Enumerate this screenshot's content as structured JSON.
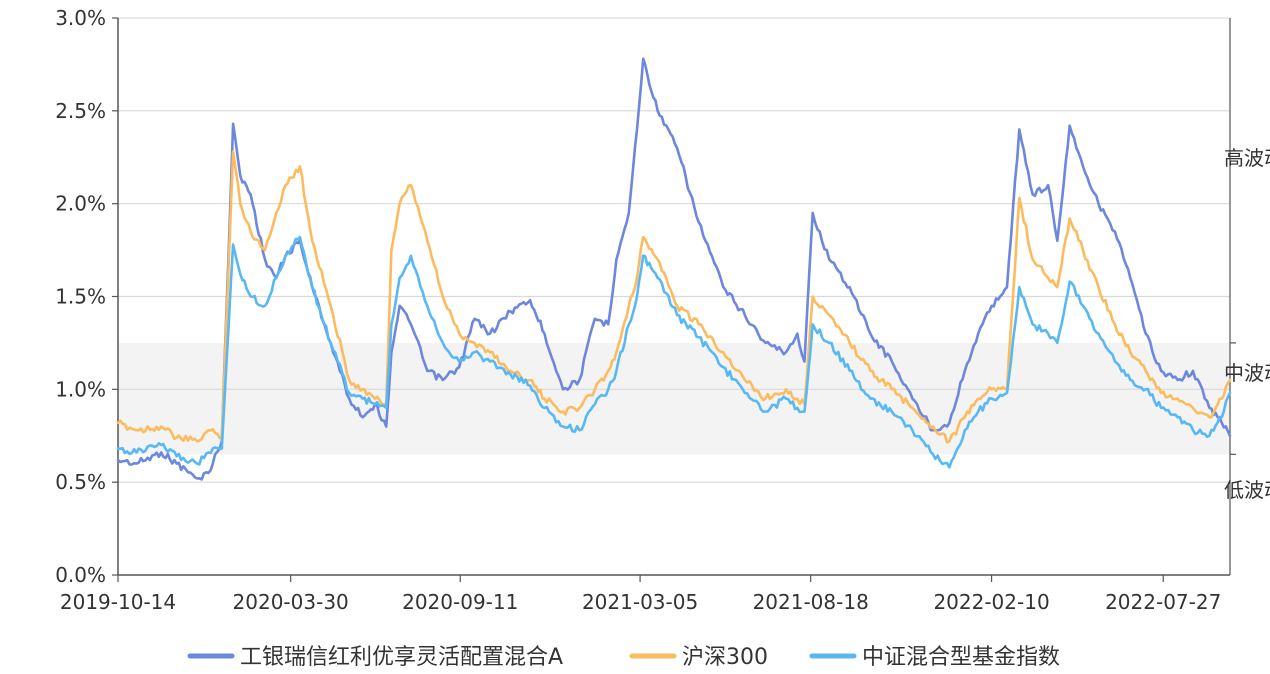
{
  "colors": {
    "fund": "#6c87dd",
    "csi300": "#fbbb5e",
    "index": "#58b8f4",
    "grid": "#d9d9d9",
    "axis": "#555555",
    "band": "#f3f3f3"
  },
  "zones": {
    "high": "高波动",
    "mid": "中波动",
    "low": "低波动",
    "mid_band": [
      0.65,
      1.25
    ]
  },
  "chart_data": {
    "type": "line",
    "title": "",
    "xlabel": "",
    "ylabel": "",
    "ylim": [
      0,
      3.0
    ],
    "y_ticks": [
      0,
      0.5,
      1.0,
      1.5,
      2.0,
      2.5,
      3.0
    ],
    "y_tick_labels": [
      "0.0%",
      "0.5%",
      "1.0%",
      "1.5%",
      "2.0%",
      "2.5%",
      "3.0%"
    ],
    "x_range": [
      "2019-10-14",
      "2022-09-30"
    ],
    "x_tick_labels": [
      "2019-10-14",
      "2020-03-30",
      "2020-09-11",
      "2021-03-05",
      "2021-08-18",
      "2022-02-10",
      "2022-07-27"
    ],
    "grid": true,
    "legend_position": "bottom-center",
    "series": [
      {
        "name": "工银瑞信红利优享灵活配置混合A",
        "color_key": "fund",
        "points": [
          [
            "2019-10-14",
            0.62
          ],
          [
            "2019-11-01",
            0.6
          ],
          [
            "2019-11-25",
            0.66
          ],
          [
            "2019-12-10",
            0.6
          ],
          [
            "2019-12-30",
            0.52
          ],
          [
            "2020-01-10",
            0.55
          ],
          [
            "2020-01-23",
            0.72
          ],
          [
            "2020-02-03",
            2.43
          ],
          [
            "2020-02-10",
            2.15
          ],
          [
            "2020-02-20",
            2.05
          ],
          [
            "2020-03-05",
            1.7
          ],
          [
            "2020-03-16",
            1.6
          ],
          [
            "2020-03-25",
            1.72
          ],
          [
            "2020-04-08",
            1.8
          ],
          [
            "2020-04-20",
            1.55
          ],
          [
            "2020-05-08",
            1.25
          ],
          [
            "2020-05-26",
            0.95
          ],
          [
            "2020-06-08",
            0.85
          ],
          [
            "2020-06-20",
            0.92
          ],
          [
            "2020-07-01",
            0.8
          ],
          [
            "2020-07-06",
            1.2
          ],
          [
            "2020-07-14",
            1.45
          ],
          [
            "2020-07-25",
            1.35
          ],
          [
            "2020-08-10",
            1.1
          ],
          [
            "2020-08-25",
            1.05
          ],
          [
            "2020-09-10",
            1.12
          ],
          [
            "2020-09-25",
            1.38
          ],
          [
            "2020-10-10",
            1.3
          ],
          [
            "2020-10-30",
            1.42
          ],
          [
            "2020-11-18",
            1.48
          ],
          [
            "2020-12-02",
            1.3
          ],
          [
            "2020-12-20",
            1.0
          ],
          [
            "2021-01-05",
            1.05
          ],
          [
            "2021-01-20",
            1.38
          ],
          [
            "2021-02-02",
            1.35
          ],
          [
            "2021-02-10",
            1.7
          ],
          [
            "2021-02-22",
            1.95
          ],
          [
            "2021-03-02",
            2.4
          ],
          [
            "2021-03-08",
            2.78
          ],
          [
            "2021-03-22",
            2.5
          ],
          [
            "2021-04-10",
            2.3
          ],
          [
            "2021-05-01",
            1.9
          ],
          [
            "2021-05-25",
            1.55
          ],
          [
            "2021-06-15",
            1.4
          ],
          [
            "2021-07-05",
            1.25
          ],
          [
            "2021-07-25",
            1.2
          ],
          [
            "2021-08-05",
            1.3
          ],
          [
            "2021-08-12",
            1.15
          ],
          [
            "2021-08-20",
            1.95
          ],
          [
            "2021-09-05",
            1.7
          ],
          [
            "2021-09-25",
            1.55
          ],
          [
            "2021-10-15",
            1.3
          ],
          [
            "2021-11-05",
            1.15
          ],
          [
            "2021-11-25",
            0.95
          ],
          [
            "2021-12-15",
            0.78
          ],
          [
            "2021-12-31",
            0.82
          ],
          [
            "2022-01-15",
            1.1
          ],
          [
            "2022-01-28",
            1.3
          ],
          [
            "2022-02-10",
            1.45
          ],
          [
            "2022-02-25",
            1.55
          ],
          [
            "2022-03-09",
            2.4
          ],
          [
            "2022-03-22",
            2.05
          ],
          [
            "2022-04-06",
            2.1
          ],
          [
            "2022-04-15",
            1.8
          ],
          [
            "2022-04-27",
            2.42
          ],
          [
            "2022-05-10",
            2.2
          ],
          [
            "2022-05-25",
            2.0
          ],
          [
            "2022-06-10",
            1.85
          ],
          [
            "2022-06-25",
            1.6
          ],
          [
            "2022-07-10",
            1.3
          ],
          [
            "2022-07-25",
            1.1
          ],
          [
            "2022-08-10",
            1.05
          ],
          [
            "2022-08-25",
            1.1
          ],
          [
            "2022-09-10",
            0.9
          ],
          [
            "2022-09-22",
            0.82
          ],
          [
            "2022-09-30",
            0.75
          ]
        ]
      },
      {
        "name": "沪深300",
        "color_key": "csi300",
        "points": [
          [
            "2019-10-14",
            0.82
          ],
          [
            "2019-11-01",
            0.78
          ],
          [
            "2019-11-25",
            0.8
          ],
          [
            "2019-12-10",
            0.74
          ],
          [
            "2019-12-30",
            0.72
          ],
          [
            "2020-01-10",
            0.78
          ],
          [
            "2020-01-23",
            0.75
          ],
          [
            "2020-02-03",
            2.28
          ],
          [
            "2020-02-10",
            2.0
          ],
          [
            "2020-02-20",
            1.85
          ],
          [
            "2020-03-05",
            1.75
          ],
          [
            "2020-03-16",
            1.95
          ],
          [
            "2020-03-25",
            2.1
          ],
          [
            "2020-04-08",
            2.2
          ],
          [
            "2020-04-20",
            1.8
          ],
          [
            "2020-05-08",
            1.45
          ],
          [
            "2020-05-26",
            1.05
          ],
          [
            "2020-06-08",
            1.0
          ],
          [
            "2020-06-20",
            0.95
          ],
          [
            "2020-07-01",
            0.92
          ],
          [
            "2020-07-06",
            1.75
          ],
          [
            "2020-07-14",
            2.0
          ],
          [
            "2020-07-25",
            2.1
          ],
          [
            "2020-08-10",
            1.8
          ],
          [
            "2020-08-25",
            1.5
          ],
          [
            "2020-09-10",
            1.3
          ],
          [
            "2020-09-25",
            1.25
          ],
          [
            "2020-10-10",
            1.2
          ],
          [
            "2020-10-30",
            1.1
          ],
          [
            "2020-11-18",
            1.05
          ],
          [
            "2020-12-02",
            0.95
          ],
          [
            "2020-12-20",
            0.88
          ],
          [
            "2021-01-05",
            0.9
          ],
          [
            "2021-01-20",
            1.0
          ],
          [
            "2021-02-02",
            1.1
          ],
          [
            "2021-02-10",
            1.2
          ],
          [
            "2021-02-22",
            1.45
          ],
          [
            "2021-03-02",
            1.6
          ],
          [
            "2021-03-08",
            1.82
          ],
          [
            "2021-03-22",
            1.7
          ],
          [
            "2021-04-10",
            1.45
          ],
          [
            "2021-05-01",
            1.35
          ],
          [
            "2021-05-25",
            1.2
          ],
          [
            "2021-06-15",
            1.05
          ],
          [
            "2021-07-05",
            0.95
          ],
          [
            "2021-07-25",
            1.0
          ],
          [
            "2021-08-05",
            0.95
          ],
          [
            "2021-08-12",
            0.92
          ],
          [
            "2021-08-20",
            1.5
          ],
          [
            "2021-09-05",
            1.4
          ],
          [
            "2021-09-25",
            1.25
          ],
          [
            "2021-10-15",
            1.1
          ],
          [
            "2021-11-05",
            1.0
          ],
          [
            "2021-11-25",
            0.9
          ],
          [
            "2021-12-15",
            0.8
          ],
          [
            "2021-12-31",
            0.72
          ],
          [
            "2022-01-15",
            0.85
          ],
          [
            "2022-01-28",
            0.95
          ],
          [
            "2022-02-10",
            1.0
          ],
          [
            "2022-02-25",
            1.0
          ],
          [
            "2022-03-09",
            2.03
          ],
          [
            "2022-03-22",
            1.7
          ],
          [
            "2022-04-06",
            1.6
          ],
          [
            "2022-04-15",
            1.55
          ],
          [
            "2022-04-27",
            1.92
          ],
          [
            "2022-05-10",
            1.75
          ],
          [
            "2022-05-25",
            1.55
          ],
          [
            "2022-06-10",
            1.35
          ],
          [
            "2022-06-25",
            1.2
          ],
          [
            "2022-07-10",
            1.1
          ],
          [
            "2022-07-25",
            0.98
          ],
          [
            "2022-08-10",
            0.95
          ],
          [
            "2022-08-25",
            0.9
          ],
          [
            "2022-09-10",
            0.85
          ],
          [
            "2022-09-22",
            0.95
          ],
          [
            "2022-09-30",
            1.05
          ]
        ]
      },
      {
        "name": "中证混合型基金指数",
        "color_key": "index",
        "points": [
          [
            "2019-10-14",
            0.68
          ],
          [
            "2019-11-01",
            0.66
          ],
          [
            "2019-11-25",
            0.7
          ],
          [
            "2019-12-10",
            0.64
          ],
          [
            "2019-12-30",
            0.6
          ],
          [
            "2020-01-10",
            0.66
          ],
          [
            "2020-01-23",
            0.68
          ],
          [
            "2020-02-03",
            1.78
          ],
          [
            "2020-02-10",
            1.62
          ],
          [
            "2020-02-20",
            1.5
          ],
          [
            "2020-03-05",
            1.45
          ],
          [
            "2020-03-16",
            1.6
          ],
          [
            "2020-03-25",
            1.72
          ],
          [
            "2020-04-08",
            1.82
          ],
          [
            "2020-04-20",
            1.55
          ],
          [
            "2020-05-08",
            1.25
          ],
          [
            "2020-05-26",
            0.98
          ],
          [
            "2020-06-08",
            0.95
          ],
          [
            "2020-06-20",
            0.92
          ],
          [
            "2020-07-01",
            0.9
          ],
          [
            "2020-07-06",
            1.35
          ],
          [
            "2020-07-14",
            1.6
          ],
          [
            "2020-07-25",
            1.72
          ],
          [
            "2020-08-10",
            1.45
          ],
          [
            "2020-08-25",
            1.25
          ],
          [
            "2020-09-10",
            1.15
          ],
          [
            "2020-09-25",
            1.2
          ],
          [
            "2020-10-10",
            1.15
          ],
          [
            "2020-10-30",
            1.08
          ],
          [
            "2020-11-18",
            1.02
          ],
          [
            "2020-12-02",
            0.9
          ],
          [
            "2020-12-20",
            0.8
          ],
          [
            "2021-01-05",
            0.78
          ],
          [
            "2021-01-20",
            0.92
          ],
          [
            "2021-02-02",
            1.0
          ],
          [
            "2021-02-10",
            1.1
          ],
          [
            "2021-02-22",
            1.35
          ],
          [
            "2021-03-02",
            1.5
          ],
          [
            "2021-03-08",
            1.72
          ],
          [
            "2021-03-22",
            1.6
          ],
          [
            "2021-04-10",
            1.4
          ],
          [
            "2021-05-01",
            1.28
          ],
          [
            "2021-05-25",
            1.12
          ],
          [
            "2021-06-15",
            0.98
          ],
          [
            "2021-07-05",
            0.88
          ],
          [
            "2021-07-25",
            0.95
          ],
          [
            "2021-08-05",
            0.9
          ],
          [
            "2021-08-12",
            0.88
          ],
          [
            "2021-08-20",
            1.35
          ],
          [
            "2021-09-05",
            1.25
          ],
          [
            "2021-09-25",
            1.1
          ],
          [
            "2021-10-15",
            0.95
          ],
          [
            "2021-11-05",
            0.88
          ],
          [
            "2021-11-25",
            0.78
          ],
          [
            "2021-12-15",
            0.65
          ],
          [
            "2021-12-31",
            0.58
          ],
          [
            "2022-01-15",
            0.78
          ],
          [
            "2022-01-28",
            0.88
          ],
          [
            "2022-02-10",
            0.95
          ],
          [
            "2022-02-25",
            0.98
          ],
          [
            "2022-03-09",
            1.55
          ],
          [
            "2022-03-22",
            1.35
          ],
          [
            "2022-04-06",
            1.3
          ],
          [
            "2022-04-15",
            1.25
          ],
          [
            "2022-04-27",
            1.58
          ],
          [
            "2022-05-10",
            1.45
          ],
          [
            "2022-05-25",
            1.3
          ],
          [
            "2022-06-10",
            1.15
          ],
          [
            "2022-06-25",
            1.05
          ],
          [
            "2022-07-10",
            1.0
          ],
          [
            "2022-07-25",
            0.9
          ],
          [
            "2022-08-10",
            0.85
          ],
          [
            "2022-08-25",
            0.78
          ],
          [
            "2022-09-10",
            0.75
          ],
          [
            "2022-09-22",
            0.85
          ],
          [
            "2022-09-30",
            0.98
          ]
        ]
      }
    ]
  }
}
